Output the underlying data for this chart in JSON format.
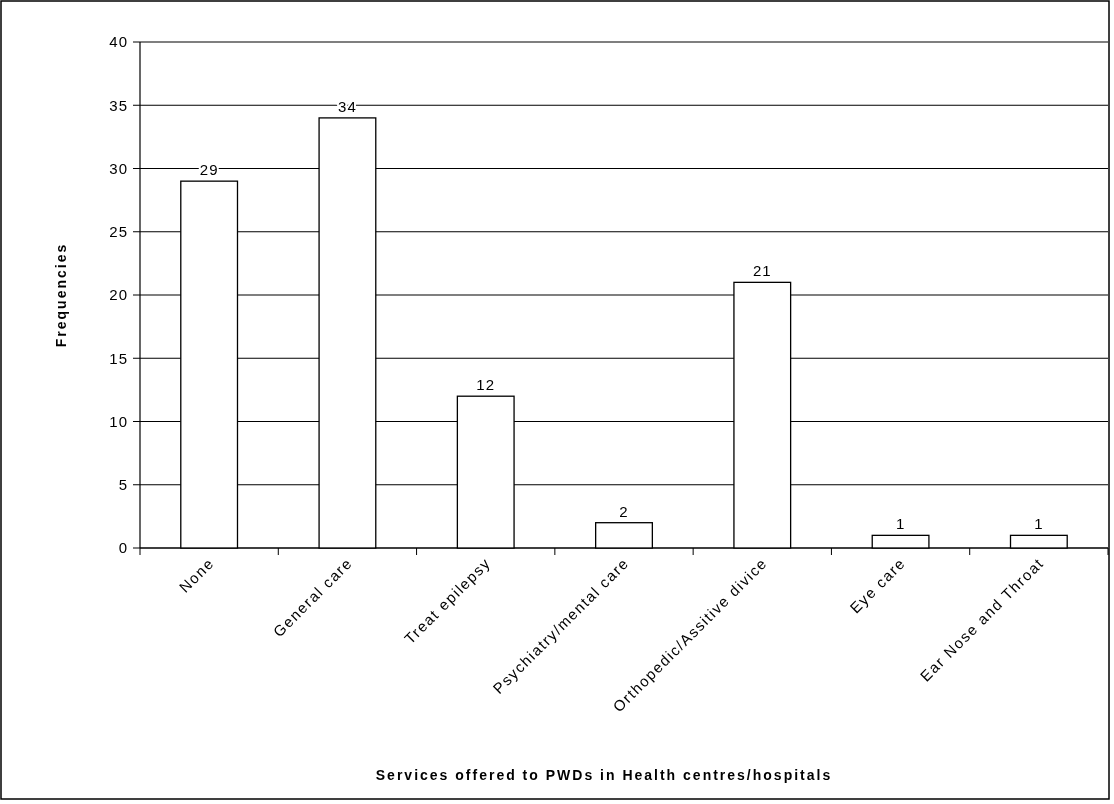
{
  "chart_data": {
    "type": "bar",
    "xlabel": "Services offered to PWDs in Health centres/hospitals",
    "ylabel": "Frequencies",
    "categories": [
      "None",
      "General care",
      "Treat epilepsy",
      "Psychiatry/mental care",
      "Orthopedic/Assitive divice",
      "Eye care",
      "Ear Nose and Throat"
    ],
    "values": [
      29,
      34,
      12,
      2,
      21,
      1,
      1
    ],
    "color": "#ffffff",
    "ylim": [
      0,
      40
    ],
    "yticks": [
      0,
      5,
      10,
      15,
      20,
      25,
      30,
      35,
      40
    ],
    "grid": "y",
    "data_labels": true
  }
}
